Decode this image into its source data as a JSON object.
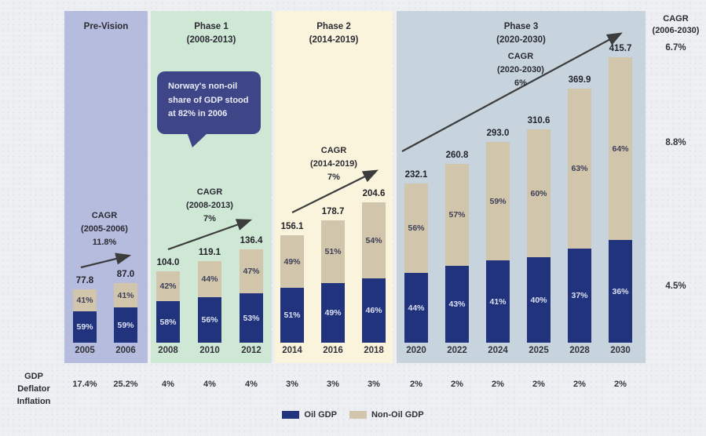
{
  "chart_data": {
    "type": "bar",
    "stacked": true,
    "axes": "none (totals labeled above bars, shares labeled inside segments)",
    "legend_position": "bottom-center",
    "categories": [
      "2005",
      "2006",
      "2008",
      "2010",
      "2012",
      "2014",
      "2016",
      "2018",
      "2020",
      "2022",
      "2024",
      "2025",
      "2028",
      "2030"
    ],
    "totals": [
      77.8,
      87.0,
      104.0,
      119.1,
      136.4,
      156.1,
      178.7,
      204.6,
      232.1,
      260.8,
      293.0,
      310.6,
      369.9,
      415.7
    ],
    "series": [
      {
        "name": "Oil GDP",
        "color": "#20337c",
        "pct_of_total": [
          59,
          59,
          58,
          56,
          53,
          51,
          49,
          46,
          44,
          43,
          41,
          40,
          37,
          36
        ]
      },
      {
        "name": "Non-Oil GDP",
        "color": "#d1c6ab",
        "pct_of_total": [
          41,
          41,
          42,
          44,
          47,
          49,
          51,
          54,
          56,
          57,
          59,
          60,
          63,
          64
        ]
      }
    ],
    "phases": [
      {
        "title_line1": "Pre-Vision",
        "title_line2": "",
        "color": "#b6bcdd",
        "categories": [
          "2005",
          "2006"
        ]
      },
      {
        "title_line1": "Phase 1",
        "title_line2": "(2008-2013)",
        "color": "#cfe7d5",
        "categories": [
          "2008",
          "2010",
          "2012"
        ]
      },
      {
        "title_line1": "Phase 2",
        "title_line2": "(2014-2019)",
        "color": "#faf4dc",
        "categories": [
          "2014",
          "2016",
          "2018"
        ]
      },
      {
        "title_line1": "Phase 3",
        "title_line2": "(2020-2030)",
        "color": "#c7d4dd",
        "categories": [
          "2020",
          "2022",
          "2024",
          "2025",
          "2028",
          "2030"
        ]
      }
    ],
    "cagr_annotations": [
      {
        "lines": [
          "CAGR",
          "(2005-2006)",
          "11.8%"
        ]
      },
      {
        "lines": [
          "CAGR",
          "(2008-2013)",
          "7%"
        ]
      },
      {
        "lines": [
          "CAGR",
          "(2014-2019)",
          "7%"
        ]
      },
      {
        "lines": [
          "CAGR",
          "(2020-2030)",
          "6%"
        ]
      }
    ]
  },
  "callout": {
    "lines": [
      "Norway's non-oil",
      "share of GDP stood",
      "at 82% in 2006"
    ],
    "bg_color": "#3e4687"
  },
  "right_cagr": {
    "header_lines": [
      "CAGR",
      "(2006-2030)"
    ],
    "values": [
      "6.7%",
      "8.8%",
      "4.5%"
    ]
  },
  "gdp_deflator": {
    "label_lines": [
      "GDP",
      "Deflator",
      "Inflation"
    ],
    "values": [
      "17.4%",
      "25.2%",
      "4%",
      "4%",
      "4%",
      "3%",
      "3%",
      "3%",
      "2%",
      "2%",
      "2%",
      "2%",
      "2%",
      "2%"
    ]
  }
}
